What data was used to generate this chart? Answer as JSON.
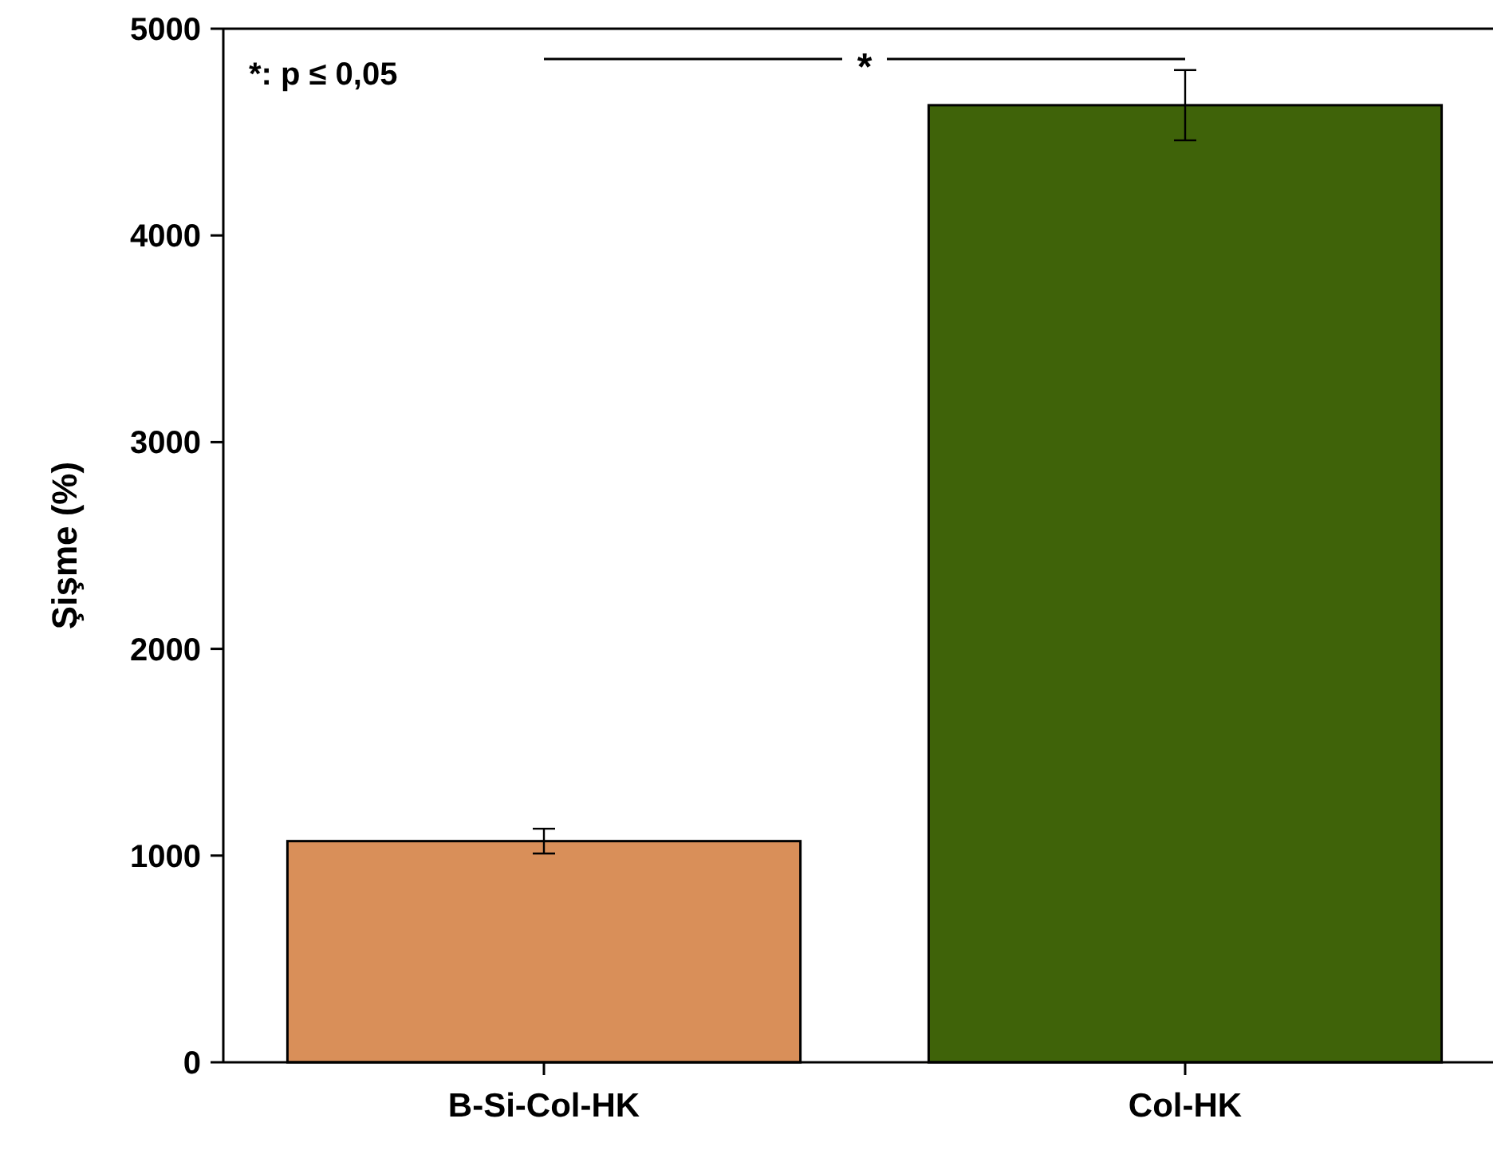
{
  "chart_data": {
    "type": "bar",
    "ylabel": "Şişme (%)",
    "categories": [
      "B-Si-Col-HK",
      "Col-HK"
    ],
    "values": [
      1070,
      4630
    ],
    "colors": [
      "#d98f59",
      "#3f6309"
    ],
    "errors": [
      60,
      170
    ],
    "ylim": [
      0,
      5000
    ],
    "yticks": [
      0,
      1000,
      2000,
      3000,
      4000,
      5000
    ],
    "annotations": [
      "*: p ≤ 0,05",
      "*"
    ]
  }
}
